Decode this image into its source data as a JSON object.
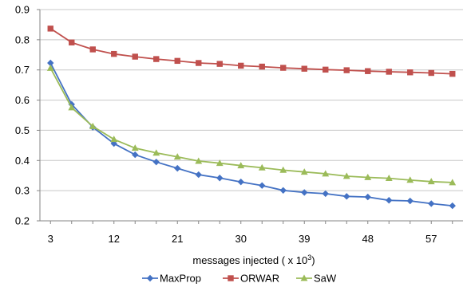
{
  "chart_data": {
    "type": "line",
    "title": "",
    "xlabel": "messages injected ( x 10",
    "xlabel_sup": "3",
    "xlabel_suffix": ")",
    "ylabel": "",
    "xlim": [
      3,
      60
    ],
    "ylim": [
      0.2,
      0.9
    ],
    "x_ticks": [
      3,
      12,
      21,
      30,
      39,
      48,
      57
    ],
    "y_ticks": [
      0.2,
      0.3,
      0.4,
      0.5,
      0.6,
      0.7,
      0.8,
      0.9
    ],
    "y_tick_labels": [
      "0.2",
      "0.3",
      "0.4",
      "0.5",
      "0.6",
      "0.7",
      "0.8",
      "0.9"
    ],
    "grid": "horizontal",
    "legend_position": "bottom",
    "x": [
      3,
      6,
      9,
      12,
      15,
      18,
      21,
      24,
      27,
      30,
      33,
      36,
      39,
      42,
      45,
      48,
      51,
      54,
      57,
      60
    ],
    "series": [
      {
        "name": "MaxProp",
        "color": "#4472C4",
        "marker": "diamond",
        "values": [
          0.723,
          0.586,
          0.51,
          0.456,
          0.419,
          0.395,
          0.374,
          0.353,
          0.342,
          0.329,
          0.317,
          0.301,
          0.294,
          0.29,
          0.281,
          0.279,
          0.268,
          0.266,
          0.257,
          0.25
        ]
      },
      {
        "name": "ORWAR",
        "color": "#C0504D",
        "marker": "square",
        "values": [
          0.837,
          0.791,
          0.768,
          0.753,
          0.744,
          0.736,
          0.73,
          0.723,
          0.72,
          0.714,
          0.711,
          0.707,
          0.704,
          0.701,
          0.699,
          0.696,
          0.694,
          0.692,
          0.69,
          0.687
        ]
      },
      {
        "name": "SaW",
        "color": "#9BBB59",
        "marker": "triangle",
        "values": [
          0.706,
          0.575,
          0.513,
          0.47,
          0.441,
          0.425,
          0.412,
          0.398,
          0.391,
          0.383,
          0.376,
          0.368,
          0.362,
          0.356,
          0.348,
          0.344,
          0.341,
          0.335,
          0.33,
          0.327
        ]
      }
    ]
  }
}
